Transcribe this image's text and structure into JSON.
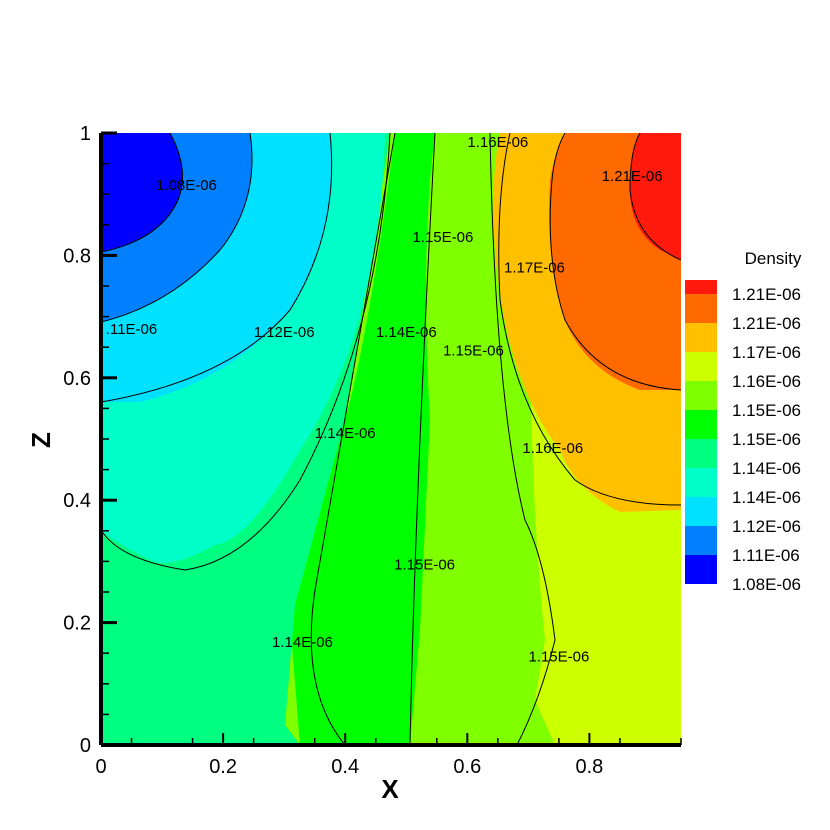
{
  "chart_data": {
    "type": "heatmap",
    "title": "",
    "xlabel": "X",
    "ylabel": "Z",
    "xlim": [
      0,
      0.95
    ],
    "ylim": [
      0,
      1
    ],
    "x_ticks": [
      "0",
      "0.2",
      "0.4",
      "0.6",
      "0.8"
    ],
    "y_ticks": [
      "0",
      "0.2",
      "0.4",
      "0.6",
      "0.8",
      "1"
    ],
    "grid": false,
    "legend": {
      "title": "Density",
      "position": "right",
      "levels": [
        {
          "label": "1.21E-06",
          "color": "#ff1a0d"
        },
        {
          "label": "1.21E-06",
          "color": "#ff6a00"
        },
        {
          "label": "1.17E-06",
          "color": "#ffc000"
        },
        {
          "label": "1.16E-06",
          "color": "#ccff00"
        },
        {
          "label": "1.15E-06",
          "color": "#80ff00"
        },
        {
          "label": "1.15E-06",
          "color": "#00ff00"
        },
        {
          "label": "1.14E-06",
          "color": "#00ff80"
        },
        {
          "label": "1.14E-06",
          "color": "#00ffc8"
        },
        {
          "label": "1.12E-06",
          "color": "#00e0ff"
        },
        {
          "label": "1.11E-06",
          "color": "#0080ff"
        },
        {
          "label": "1.08E-06",
          "color": "#0000ff"
        }
      ]
    },
    "contour_labels": [
      {
        "text": "1.08E-06",
        "x": 0.14,
        "z": 0.915
      },
      {
        "text": "1.16E-06",
        "x": 0.65,
        "z": 0.985
      },
      {
        "text": "1.21E-06",
        "x": 0.87,
        "z": 0.93
      },
      {
        "text": "1.15E-06",
        "x": 0.56,
        "z": 0.83
      },
      {
        "text": "1.17E-06",
        "x": 0.71,
        "z": 0.78
      },
      {
        "text": ".11E-06",
        "x": 0.05,
        "z": 0.68
      },
      {
        "text": "1.12E-06",
        "x": 0.3,
        "z": 0.675
      },
      {
        "text": "1.14E-06",
        "x": 0.5,
        "z": 0.675
      },
      {
        "text": "1.15E-06",
        "x": 0.61,
        "z": 0.645
      },
      {
        "text": "1.14E-06",
        "x": 0.4,
        "z": 0.51
      },
      {
        "text": "1.16E-06",
        "x": 0.74,
        "z": 0.485
      },
      {
        "text": "1.15E-06",
        "x": 0.53,
        "z": 0.295
      },
      {
        "text": "1.14E-06",
        "x": 0.33,
        "z": 0.168
      },
      {
        "text": "1.15E-06",
        "x": 0.75,
        "z": 0.145
      }
    ]
  }
}
